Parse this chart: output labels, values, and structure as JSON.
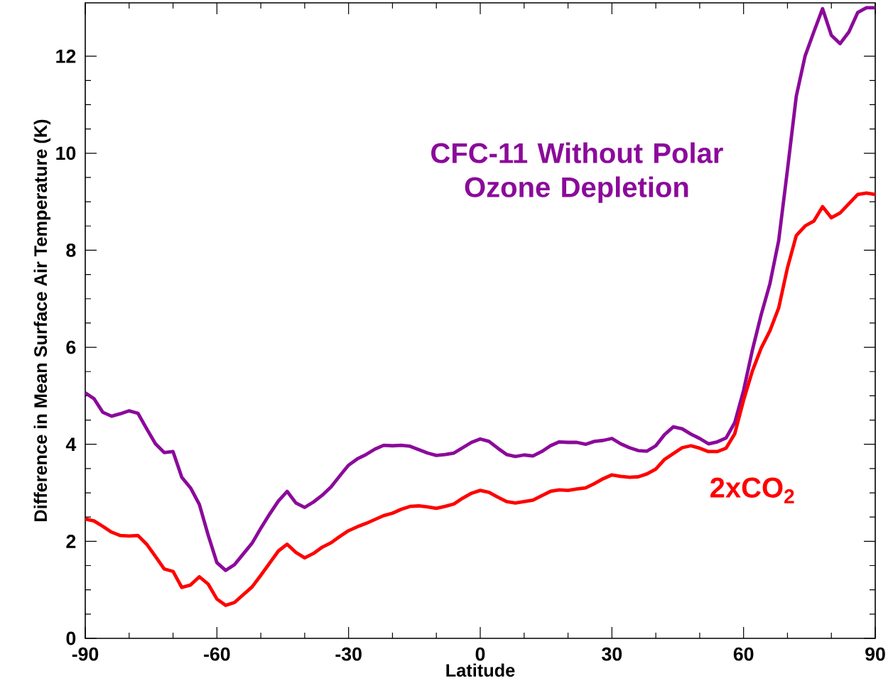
{
  "chart_data": {
    "type": "line",
    "xlabel": "Latitude",
    "ylabel": "Difference in Mean Surface Air Temperature (K)",
    "x": [
      -90,
      -88,
      -86,
      -84,
      -82,
      -80,
      -78,
      -76,
      -74,
      -72,
      -70,
      -68,
      -66,
      -64,
      -62,
      -60,
      -58,
      -56,
      -54,
      -52,
      -50,
      -48,
      -46,
      -44,
      -42,
      -40,
      -38,
      -36,
      -34,
      -32,
      -30,
      -28,
      -26,
      -24,
      -22,
      -20,
      -18,
      -16,
      -14,
      -12,
      -10,
      -8,
      -6,
      -4,
      -2,
      0,
      2,
      4,
      6,
      8,
      10,
      12,
      14,
      16,
      18,
      20,
      22,
      24,
      26,
      28,
      30,
      32,
      34,
      36,
      38,
      40,
      42,
      44,
      46,
      48,
      50,
      52,
      54,
      56,
      58,
      60,
      62,
      64,
      66,
      68,
      70,
      72,
      74,
      76,
      78,
      80,
      82,
      84,
      86,
      88,
      90
    ],
    "series": [
      {
        "name": "CFC-11 Without Polar Ozone Depletion",
        "color": "#8b0a9a",
        "values": [
          5.06,
          4.94,
          4.66,
          4.58,
          4.63,
          4.69,
          4.64,
          4.32,
          4.01,
          3.83,
          3.85,
          3.32,
          3.1,
          2.76,
          2.13,
          1.56,
          1.4,
          1.52,
          1.74,
          1.96,
          2.27,
          2.56,
          2.83,
          3.03,
          2.79,
          2.7,
          2.81,
          2.95,
          3.12,
          3.35,
          3.57,
          3.7,
          3.79,
          3.9,
          3.98,
          3.97,
          3.98,
          3.96,
          3.89,
          3.82,
          3.77,
          3.79,
          3.82,
          3.93,
          4.04,
          4.11,
          4.06,
          3.92,
          3.79,
          3.75,
          3.78,
          3.76,
          3.85,
          3.97,
          4.05,
          4.04,
          4.04,
          4.0,
          4.06,
          4.08,
          4.12,
          4.01,
          3.93,
          3.87,
          3.86,
          3.97,
          4.2,
          4.36,
          4.32,
          4.21,
          4.12,
          4.01,
          4.05,
          4.13,
          4.45,
          5.11,
          5.94,
          6.67,
          7.31,
          8.2,
          9.66,
          11.17,
          12.0,
          12.5,
          12.98,
          12.43,
          12.26,
          12.5,
          12.9,
          13.0,
          13.0
        ]
      },
      {
        "name": "2xCO$_{2}$",
        "color": "#ff0000",
        "values": [
          2.46,
          2.42,
          2.31,
          2.19,
          2.12,
          2.11,
          2.12,
          1.94,
          1.69,
          1.43,
          1.38,
          1.05,
          1.1,
          1.27,
          1.12,
          0.81,
          0.68,
          0.74,
          0.9,
          1.06,
          1.3,
          1.55,
          1.8,
          1.94,
          1.77,
          1.66,
          1.75,
          1.88,
          1.97,
          2.1,
          2.22,
          2.3,
          2.37,
          2.45,
          2.53,
          2.58,
          2.66,
          2.72,
          2.73,
          2.71,
          2.68,
          2.72,
          2.77,
          2.89,
          2.99,
          3.05,
          3.01,
          2.91,
          2.82,
          2.79,
          2.82,
          2.85,
          2.94,
          3.03,
          3.06,
          3.05,
          3.08,
          3.1,
          3.19,
          3.29,
          3.37,
          3.34,
          3.32,
          3.33,
          3.39,
          3.49,
          3.69,
          3.81,
          3.93,
          3.97,
          3.92,
          3.85,
          3.85,
          3.92,
          4.22,
          4.91,
          5.51,
          5.98,
          6.34,
          6.81,
          7.64,
          8.3,
          8.5,
          8.6,
          8.9,
          8.67,
          8.77,
          8.96,
          9.15,
          9.18,
          9.15
        ]
      }
    ],
    "xlim": [
      -90,
      90
    ],
    "xticks": [
      -90,
      -60,
      -30,
      0,
      30,
      60,
      90
    ],
    "ylim": [
      0,
      13.1
    ],
    "yticks": [
      0,
      2,
      4,
      6,
      8,
      10,
      12
    ]
  }
}
